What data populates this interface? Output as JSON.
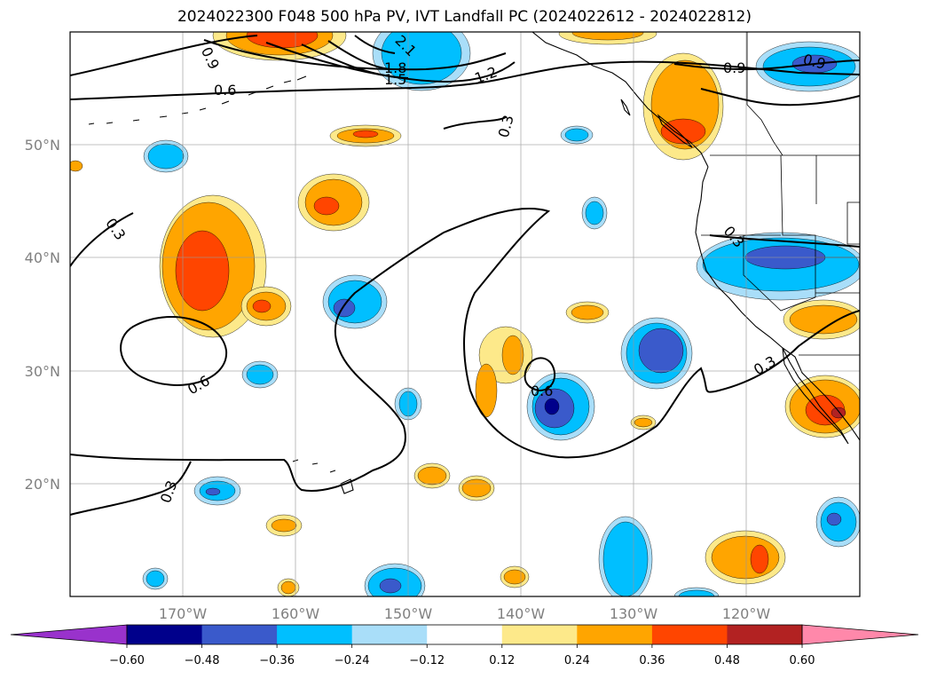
{
  "title": "2024022300 F048 500 hPa PV, IVT Landfall PC (2024022612 - 2024022812)",
  "map": {
    "lat_labels": [
      "50°N",
      "40°N",
      "30°N",
      "20°N"
    ],
    "lon_labels": [
      "170°W",
      "160°W",
      "150°W",
      "140°W",
      "130°W",
      "120°W"
    ],
    "contour_labels": [
      "0.9",
      "0.6",
      "2.1",
      "1.8",
      "1.5",
      "1.2",
      "0.3",
      "0.9",
      "0.9",
      "0.3",
      "0.6",
      "0.6",
      "0.3",
      "0.3",
      "0.3"
    ],
    "gridlines": true,
    "fill_colors": {
      "neg_060": "#9932cc",
      "neg_048": "#00008b",
      "neg_036": "#3a5acb",
      "neg_024": "#00bfff",
      "neg_012": "#a9def9",
      "neutral": "#ffffff",
      "pos_012": "#fde98a",
      "pos_024": "#ffa500",
      "pos_036": "#ff4500",
      "pos_048": "#b22222",
      "pos_060": "#ff88aa"
    }
  },
  "colorbar": {
    "ticks": [
      "−0.60",
      "−0.48",
      "−0.36",
      "−0.24",
      "−0.12",
      "0.12",
      "0.24",
      "0.36",
      "0.48",
      "0.60"
    ],
    "colors": [
      "#9932cc",
      "#00008b",
      "#3a5acb",
      "#00bfff",
      "#a9def9",
      "#ffffff",
      "#fde98a",
      "#ffa500",
      "#ff4500",
      "#b22222",
      "#ff88aa"
    ]
  }
}
